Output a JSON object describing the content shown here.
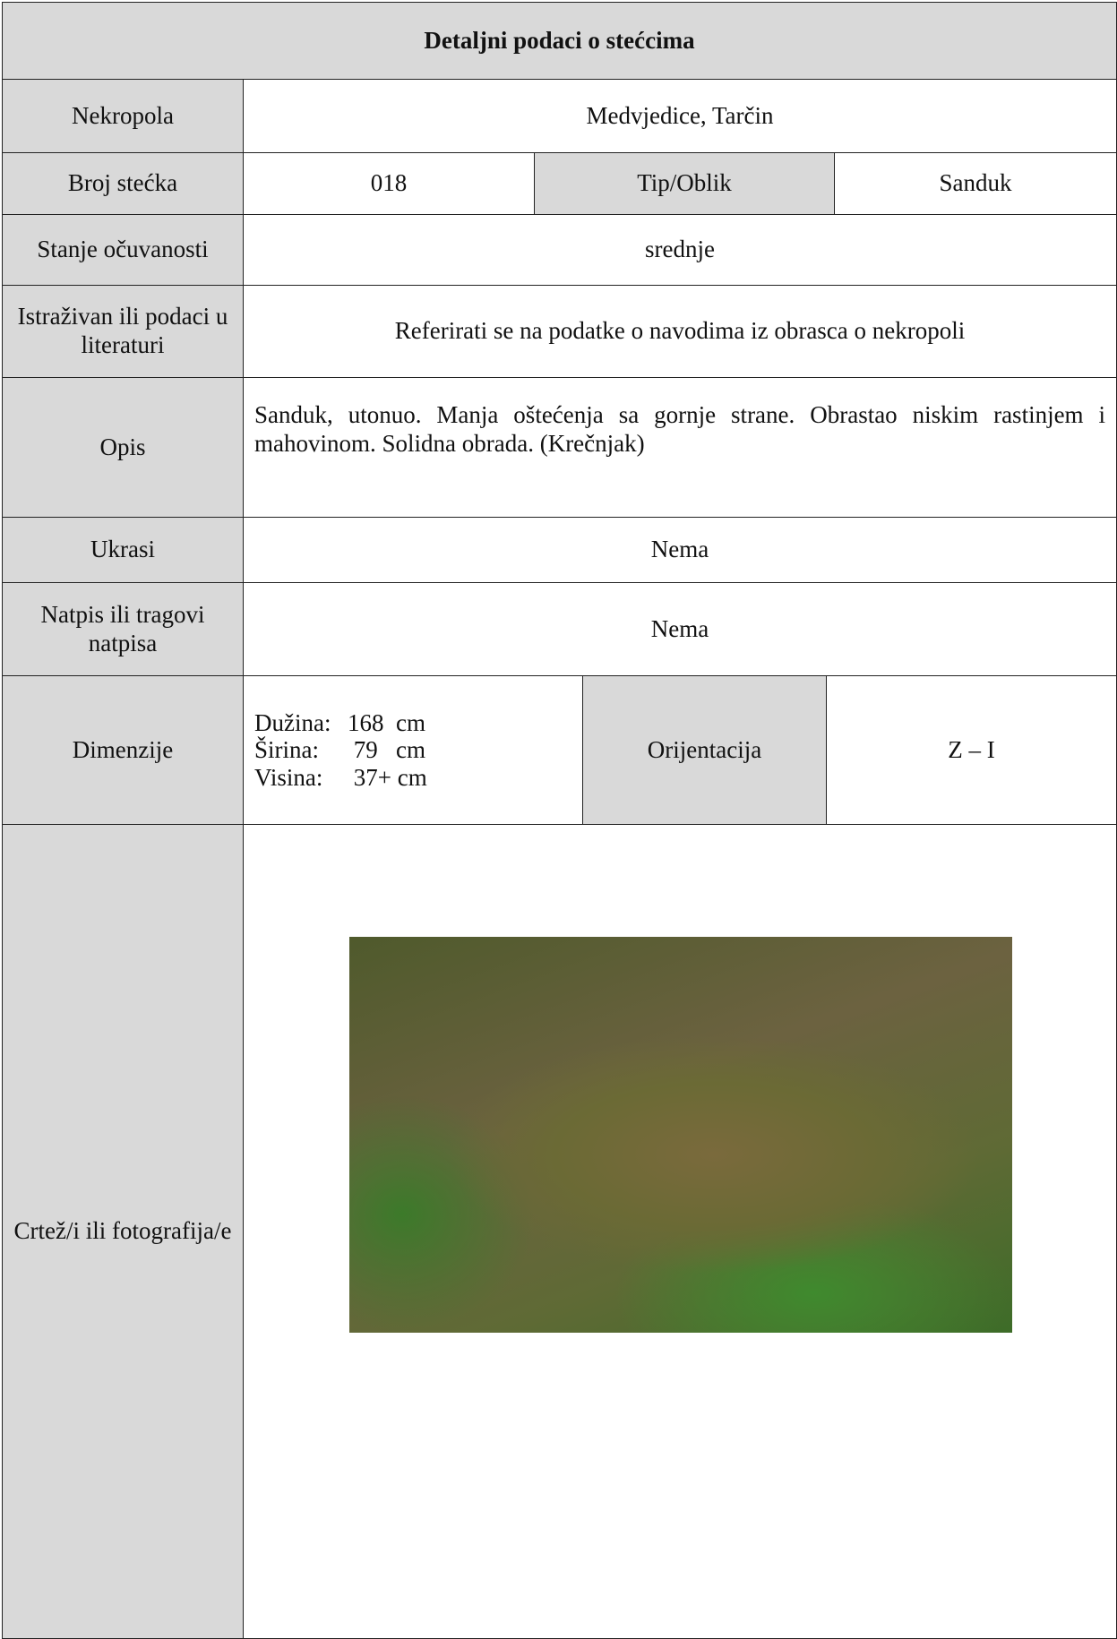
{
  "title": "Detaljni podaci o stećcima",
  "fields": {
    "nekropola": {
      "label": "Nekropola",
      "value": "Medvjedice, Tarčin"
    },
    "broj": {
      "label": "Broj stećka",
      "value": "018"
    },
    "tip": {
      "label": "Tip/Oblik",
      "value": "Sanduk"
    },
    "stanje": {
      "label": "Stanje očuvanosti",
      "value": "srednje"
    },
    "istrazivan": {
      "label": "Istraživan ili podaci u literaturi",
      "value": "Referirati se na podatke o navodima iz obrasca o nekropoli"
    },
    "opis": {
      "label": "Opis",
      "value": "Sanduk, utonuo. Manja oštećenja sa gornje strane. Obrastao niskim rastinjem i mahovinom. Solidna obrada. (Krečnjak)"
    },
    "ukrasi": {
      "label": "Ukrasi",
      "value": "Nema"
    },
    "natpis": {
      "label": "Natpis ili tragovi natpisa",
      "value": "Nema"
    },
    "dimenzije": {
      "label": "Dimenzije",
      "items": [
        {
          "label": "Dužina:",
          "value": "168  cm"
        },
        {
          "label": "Širina:",
          "value": " 79   cm"
        },
        {
          "label": "Visina:",
          "value": " 37+ cm"
        }
      ]
    },
    "orijentacija": {
      "label": "Orijentacija",
      "value": "Z – I"
    },
    "crtez": {
      "label": "Crtež/i ili fotografija/e"
    }
  }
}
